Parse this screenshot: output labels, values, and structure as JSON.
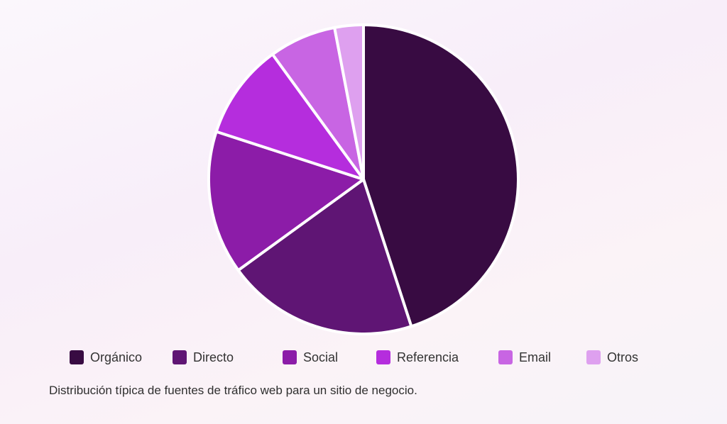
{
  "chart_data": {
    "type": "pie",
    "categories": [
      "Orgánico",
      "Directo",
      "Social",
      "Referencia",
      "Email",
      "Otros"
    ],
    "values": [
      45,
      20,
      15,
      10,
      7,
      3
    ],
    "colors": [
      "#380b42",
      "#5f1574",
      "#8c1ca8",
      "#b52ddd",
      "#c865e3",
      "#dea0ef"
    ],
    "legend_position": "bottom",
    "caption": "Distribución típica de fuentes de tráfico web para un sitio de negocio."
  }
}
